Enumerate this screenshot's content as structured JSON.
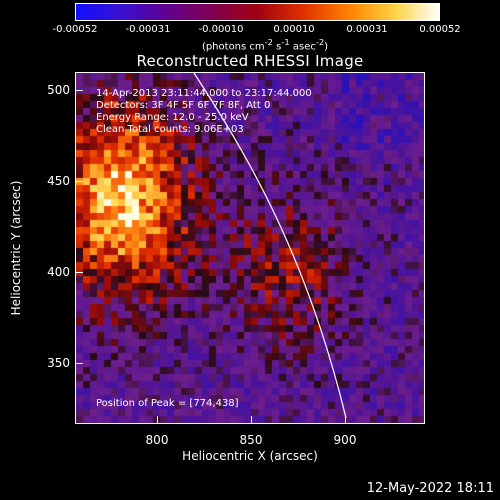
{
  "colorbar": {
    "ticks": [
      "-0.00052",
      "-0.00031",
      "-0.00010",
      "0.00010",
      "0.00031",
      "0.00052"
    ],
    "unit_prefix": "(photons cm",
    "unit_exp1": "-2",
    "unit_mid": " s",
    "unit_exp2": "-1",
    "unit_suffix": " asec",
    "unit_exp3": "-2",
    "unit_end": ")",
    "gradient": [
      "#1010ff",
      "#3a10d0",
      "#600090",
      "#800050",
      "#a00010",
      "#e03000",
      "#ff8000",
      "#ffd040",
      "#ffffff"
    ]
  },
  "title": "Reconstructed RHESSI Image",
  "axes": {
    "ylabel": "Heliocentric Y (arcsec)",
    "xlabel": "Heliocentric X (arcsec)",
    "yticks": [
      "500",
      "450",
      "400",
      "350"
    ],
    "xticks": [
      "800",
      "850",
      "900"
    ]
  },
  "info": {
    "line1": "14-Apr-2013 23:11:44.000 to 23:17:44.000",
    "line2": "Detectors: 3F 4F 5F 6F 7F 8F, Att 0",
    "line3": "Energy Range: 12.0 - 25.0 keV",
    "line4": "Clean   Total counts: 9.06E+03"
  },
  "peak": "Position of Peak = [774,438]",
  "footer": "12-May-2022 18:11"
}
